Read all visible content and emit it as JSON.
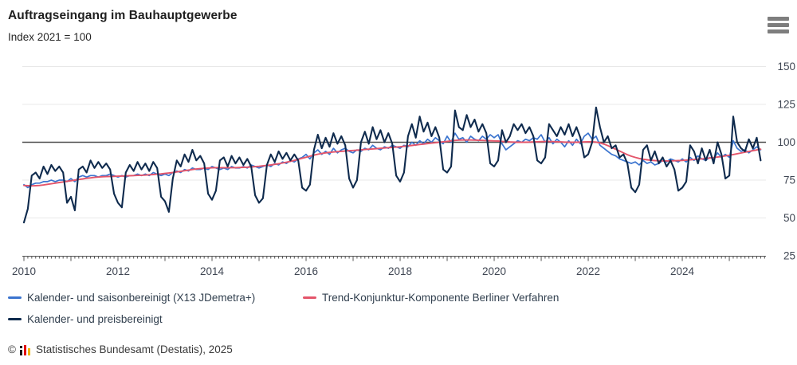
{
  "header": {
    "title": "Auftragseingang im Bauhauptgewerbe",
    "subtitle": "Index 2021 = 100"
  },
  "menu": {
    "icon": "hamburger-menu"
  },
  "legend": [
    {
      "label": "Kalender- und saisonbereinigt (X13 JDemetra+)",
      "color": "#3b74cf"
    },
    {
      "label": "Trend-Konjunktur-Komponente Berliner Verfahren",
      "color": "#e4556a"
    },
    {
      "label": "Kalender- und preisbereinigt",
      "color": "#0e2a4d"
    }
  ],
  "footer": {
    "copyright_symbol": "©",
    "logo_icon": "destatis-bars-icon",
    "text": "Statistisches Bundesamt (Destatis), 2025"
  },
  "chart_data": {
    "type": "line",
    "title": "Auftragseingang im Bauhauptgewerbe",
    "index_base": "Index 2021 = 100",
    "x_unit": "month",
    "x_range": {
      "start": "2010-01",
      "end": "2025-09"
    },
    "x_tick_labels": [
      "2010",
      "2012",
      "2014",
      "2016",
      "2018",
      "2020",
      "2022",
      "2024"
    ],
    "y_ticks": [
      150,
      125,
      100,
      75,
      50,
      25
    ],
    "ylim": [
      25,
      158
    ],
    "baseline": 100,
    "grid_color": "#e8e8e8",
    "baseline_color": "#4d4d4d",
    "axis_color": "#555555",
    "tick_label_color": "#3f4653",
    "legend_position": "bottom",
    "series": [
      {
        "name": "Kalender- und saisonbereinigt (X13 JDemetra+)",
        "color": "#3b74cf",
        "stroke_width": 1.7,
        "values": [
          72,
          70,
          72,
          73,
          73,
          74,
          74,
          75,
          74,
          75,
          75,
          74,
          76,
          74,
          77,
          78,
          77,
          78,
          78,
          77,
          78,
          78,
          79,
          78,
          77,
          78,
          77,
          78,
          78,
          79,
          78,
          79,
          78,
          80,
          79,
          78,
          79,
          78,
          80,
          81,
          80,
          82,
          81,
          83,
          82,
          82,
          83,
          82,
          84,
          83,
          82,
          83,
          82,
          84,
          83,
          83,
          84,
          83,
          85,
          84,
          83,
          84,
          85,
          84,
          86,
          85,
          87,
          86,
          88,
          87,
          89,
          90,
          92,
          89,
          93,
          95,
          92,
          94,
          92,
          96,
          93,
          95,
          96,
          94,
          93,
          95,
          94,
          96,
          95,
          98,
          96,
          95,
          97,
          96,
          98,
          97,
          96,
          98,
          97,
          100,
          98,
          101,
          99,
          102,
          100,
          103,
          101,
          99,
          104,
          100,
          106,
          102,
          103,
          100,
          104,
          102,
          101,
          104,
          102,
          105,
          103,
          105,
          99,
          95,
          97,
          99,
          101,
          100,
          102,
          101,
          103,
          102,
          105,
          100,
          103,
          99,
          102,
          100,
          97,
          101,
          98,
          102,
          99,
          104,
          106,
          102,
          104,
          98,
          96,
          94,
          92,
          91,
          89,
          88,
          87,
          86,
          87,
          85,
          88,
          86,
          87,
          85,
          86,
          88,
          87,
          89,
          88,
          87,
          89,
          87,
          90,
          88,
          91,
          89,
          88,
          90,
          89,
          93,
          90,
          92,
          90,
          101,
          96,
          94,
          95,
          93,
          95,
          97,
          95
        ]
      },
      {
        "name": "Trend-Konjunktur-Komponente Berliner Verfahren",
        "color": "#e4556a",
        "stroke_width": 1.9,
        "values": [
          71.5,
          71.3,
          71.2,
          71.3,
          71.5,
          71.8,
          72.2,
          72.6,
          73.0,
          73.4,
          73.8,
          74.2,
          74.6,
          75.0,
          75.4,
          75.8,
          76.2,
          76.5,
          76.8,
          77.0,
          77.2,
          77.3,
          77.4,
          77.5,
          77.6,
          77.7,
          77.8,
          77.9,
          78.0,
          78.1,
          78.2,
          78.3,
          78.5,
          78.7,
          78.9,
          79.1,
          79.4,
          79.7,
          80.0,
          80.4,
          80.8,
          81.2,
          81.6,
          82.0,
          82.3,
          82.6,
          82.8,
          83.0,
          83.1,
          83.2,
          83.2,
          83.2,
          83.2,
          83.2,
          83.2,
          83.3,
          83.4,
          83.5,
          83.7,
          83.9,
          84.1,
          84.4,
          84.7,
          85.0,
          85.4,
          85.8,
          86.3,
          86.8,
          87.4,
          88.0,
          88.7,
          89.4,
          90.1,
          90.8,
          91.5,
          92.1,
          92.6,
          93.0,
          93.3,
          93.6,
          93.8,
          94.0,
          94.2,
          94.4,
          94.6,
          94.8,
          95.0,
          95.2,
          95.4,
          95.6,
          95.8,
          96.0,
          96.2,
          96.4,
          96.6,
          96.8,
          97.0,
          97.3,
          97.6,
          97.9,
          98.2,
          98.5,
          98.8,
          99.1,
          99.4,
          99.7,
          100.0,
          100.3,
          100.6,
          100.9,
          101.2,
          101.4,
          101.5,
          101.5,
          101.5,
          101.4,
          101.3,
          101.2,
          101.1,
          101.0,
          100.9,
          100.8,
          100.6,
          100.4,
          100.2,
          100.1,
          100.0,
          100.0,
          100.0,
          100.1,
          100.2,
          100.3,
          100.4,
          100.5,
          100.5,
          100.4,
          100.3,
          100.2,
          100.1,
          100.0,
          100.0,
          100.0,
          100.1,
          100.2,
          100.3,
          100.3,
          100.1,
          99.6,
          98.8,
          97.8,
          96.6,
          95.4,
          94.2,
          93.0,
          91.8,
          90.8,
          90.0,
          89.3,
          88.8,
          88.4,
          88.1,
          87.9,
          87.8,
          87.7,
          87.7,
          87.7,
          87.8,
          87.9,
          88.0,
          88.2,
          88.4,
          88.6,
          88.8,
          89.0,
          89.3,
          89.6,
          89.9,
          90.2,
          90.6,
          91.0,
          91.4,
          91.9,
          92.4,
          92.9,
          93.4,
          93.9,
          94.4,
          94.9,
          95.4
        ]
      },
      {
        "name": "Kalender- und preisbereinigt",
        "color": "#0e2a4d",
        "stroke_width": 2.1,
        "values": [
          47,
          56,
          78,
          80,
          76,
          84,
          79,
          85,
          81,
          84,
          80,
          60,
          64,
          55,
          82,
          84,
          80,
          88,
          83,
          87,
          83,
          86,
          82,
          66,
          60,
          57,
          80,
          85,
          81,
          87,
          82,
          86,
          81,
          87,
          83,
          64,
          61,
          54,
          76,
          88,
          84,
          92,
          87,
          95,
          88,
          91,
          86,
          66,
          62,
          68,
          88,
          90,
          84,
          91,
          86,
          90,
          85,
          89,
          84,
          65,
          60,
          63,
          85,
          92,
          87,
          94,
          89,
          93,
          88,
          92,
          88,
          70,
          68,
          72,
          95,
          105,
          96,
          103,
          97,
          106,
          99,
          104,
          98,
          76,
          70,
          75,
          100,
          107,
          99,
          110,
          102,
          108,
          100,
          106,
          99,
          78,
          74,
          80,
          104,
          112,
          103,
          117,
          107,
          113,
          104,
          110,
          103,
          82,
          80,
          84,
          121,
          110,
          108,
          118,
          110,
          115,
          107,
          112,
          106,
          86,
          84,
          88,
          108,
          100,
          104,
          112,
          108,
          112,
          106,
          110,
          104,
          88,
          86,
          90,
          112,
          108,
          104,
          110,
          105,
          112,
          104,
          110,
          103,
          90,
          92,
          100,
          123,
          110,
          100,
          104,
          96,
          98,
          90,
          92,
          86,
          70,
          67,
          72,
          95,
          98,
          88,
          94,
          86,
          90,
          84,
          88,
          82,
          68,
          70,
          74,
          98,
          94,
          86,
          96,
          88,
          95,
          86,
          100,
          92,
          76,
          78,
          117,
          100,
          96,
          94,
          102,
          96,
          103,
          88
        ]
      }
    ]
  }
}
